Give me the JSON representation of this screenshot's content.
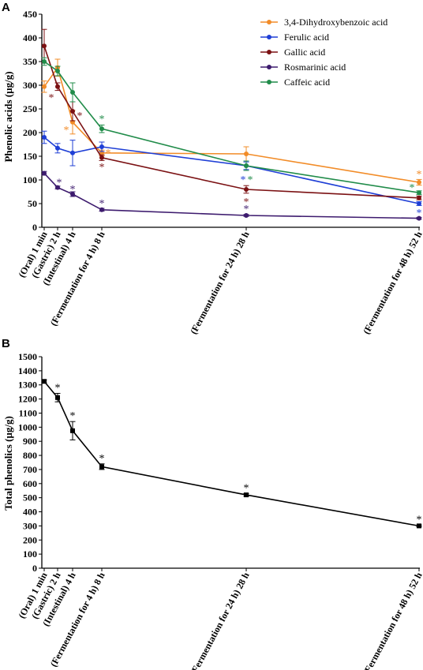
{
  "chart_data": [
    {
      "panel": "A",
      "type": "line",
      "ylabel": "Phenolic acids (µg/g)",
      "xlabel": "",
      "ylim": [
        0,
        450
      ],
      "yticks": [
        0,
        50,
        100,
        150,
        200,
        250,
        300,
        350,
        400,
        450
      ],
      "x": [
        1,
        120,
        240,
        480,
        1680,
        3120
      ],
      "x_tick_labels": [
        "(Oral) 1 min",
        "(Gastric) 2 h",
        "(Intestinal) 4 h",
        "(Fermentation for 4 h) 8 h",
        "(Fermentation for 24 h) 28 h",
        "(Fermentation for 48 h) 52 h"
      ],
      "legend_position": "top-right",
      "series": [
        {
          "name": "3,4-Dihydroxybenzoic acid",
          "color": "#f28c28",
          "values": [
            297,
            337,
            222,
            157,
            155,
            95
          ],
          "errors": [
            12,
            18,
            25,
            6,
            15,
            6
          ],
          "stars": [
            false,
            false,
            true,
            true,
            false,
            true
          ]
        },
        {
          "name": "Ferulic acid",
          "color": "#1f3fd6",
          "values": [
            190,
            167,
            157,
            170,
            130,
            50
          ],
          "errors": [
            13,
            10,
            27,
            10,
            8,
            4
          ],
          "stars": [
            false,
            false,
            false,
            false,
            true,
            true
          ]
        },
        {
          "name": "Gallic acid",
          "color": "#7b1113",
          "values": [
            383,
            297,
            245,
            147,
            80,
            62
          ],
          "errors": [
            35,
            8,
            20,
            6,
            8,
            4
          ],
          "stars": [
            false,
            true,
            true,
            true,
            true,
            false
          ]
        },
        {
          "name": "Rosmarinic acid",
          "color": "#3d1b6e",
          "values": [
            114,
            84,
            70,
            37,
            25,
            19
          ],
          "errors": [
            4,
            3,
            5,
            3,
            2,
            2
          ],
          "stars": [
            false,
            true,
            true,
            true,
            true,
            false
          ]
        },
        {
          "name": "Caffeic acid",
          "color": "#218c4a",
          "values": [
            350,
            330,
            285,
            208,
            130,
            73
          ],
          "errors": [
            8,
            10,
            20,
            8,
            10,
            4
          ],
          "stars": [
            false,
            false,
            false,
            true,
            true,
            true
          ]
        }
      ]
    },
    {
      "panel": "B",
      "type": "line",
      "ylabel": "Total phenolics (µg/g)",
      "xlabel": "",
      "ylim": [
        0,
        1500
      ],
      "yticks": [
        0,
        100,
        200,
        300,
        400,
        500,
        600,
        700,
        800,
        900,
        1000,
        1100,
        1200,
        1300,
        1400,
        1500
      ],
      "x": [
        1,
        120,
        240,
        480,
        1680,
        3120
      ],
      "x_tick_labels": [
        "(Oral) 1 min",
        "(Gastric) 2 h",
        "(Intestinal) 4 h",
        "(Fermentation for 4 h) 8 h",
        "(Fermentation for 24 h) 28 h",
        "(Fermentation for 48 h) 52 h"
      ],
      "series": [
        {
          "color": "#000000",
          "values": [
            1325,
            1210,
            975,
            720,
            520,
            300
          ],
          "errors": [
            10,
            30,
            65,
            20,
            10,
            6
          ],
          "stars": [
            false,
            true,
            true,
            true,
            true,
            true
          ]
        }
      ]
    }
  ],
  "star_symbol": "*"
}
